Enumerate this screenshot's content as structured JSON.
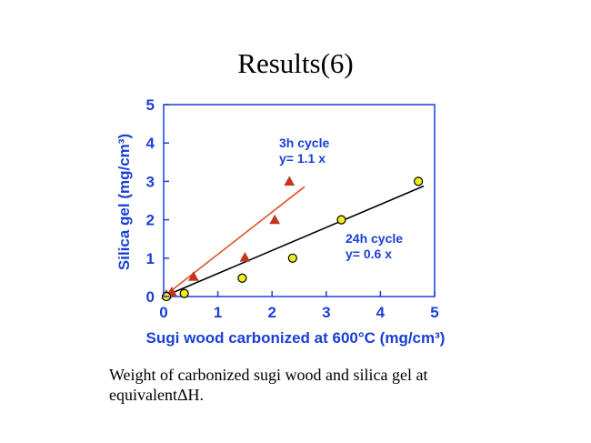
{
  "slide": {
    "title": "Results(6)",
    "caption_line1": "Weight of carbonized sugi wood and silica gel at",
    "caption_line2": "equivalentΔH."
  },
  "chart_data": {
    "type": "scatter",
    "title": "",
    "xlabel": "Sugi wood carbonized at 600°C (mg/cm³)",
    "ylabel": "Silica gel (mg/cm³)",
    "xlim": [
      0,
      5
    ],
    "ylim": [
      0,
      5
    ],
    "x_ticks": [
      0,
      1,
      2,
      3,
      4,
      5
    ],
    "y_ticks": [
      0,
      1,
      2,
      3,
      4,
      5
    ],
    "grid": false,
    "axis_color": "#1a3fd6",
    "series": [
      {
        "name": "3h cycle",
        "fit_label": "y= 1.1 x",
        "marker": "triangle",
        "color": "#c4361b",
        "line_color": "#e0502a",
        "slope": 1.1,
        "fit_x_range": [
          0,
          2.6
        ],
        "points": [
          {
            "x": 0.05,
            "y": 0.05
          },
          {
            "x": 0.15,
            "y": 0.12
          },
          {
            "x": 0.55,
            "y": 0.52
          },
          {
            "x": 1.5,
            "y": 1.02
          },
          {
            "x": 2.05,
            "y": 2.0
          },
          {
            "x": 2.32,
            "y": 3.0
          }
        ]
      },
      {
        "name": "24h cycle",
        "fit_label": "y= 0.6 x",
        "marker": "circle",
        "color": "#f2ee1a",
        "line_color": "#000000",
        "slope": 0.6,
        "fit_x_range": [
          0,
          4.8
        ],
        "points": [
          {
            "x": 0.05,
            "y": 0.0
          },
          {
            "x": 0.38,
            "y": 0.08
          },
          {
            "x": 1.45,
            "y": 0.48
          },
          {
            "x": 2.38,
            "y": 1.0
          },
          {
            "x": 3.28,
            "y": 2.0
          },
          {
            "x": 4.7,
            "y": 3.0
          }
        ]
      }
    ]
  }
}
